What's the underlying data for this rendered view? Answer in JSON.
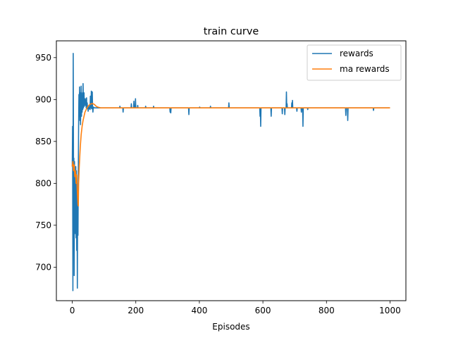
{
  "chart_data": {
    "type": "line",
    "title": "train curve",
    "xlabel": "Episodes",
    "ylabel": "",
    "xlim": [
      -50,
      1050
    ],
    "ylim": [
      660,
      970
    ],
    "xticks": [
      0,
      200,
      400,
      600,
      800,
      1000
    ],
    "yticks": [
      700,
      750,
      800,
      850,
      900,
      950
    ],
    "grid": false,
    "legend_position": "upper right",
    "colors": {
      "rewards": "#1f77b4",
      "ma_rewards": "#ff7f0e"
    },
    "series": [
      {
        "name": "rewards",
        "key": "rewards",
        "color": "#1f77b4",
        "points": [
          [
            0,
            820
          ],
          [
            1,
            868
          ],
          [
            2,
            672
          ],
          [
            3,
            955
          ],
          [
            4,
            810
          ],
          [
            5,
            830
          ],
          [
            6,
            690
          ],
          [
            7,
            826
          ],
          [
            8,
            775
          ],
          [
            9,
            812
          ],
          [
            10,
            740
          ],
          [
            11,
            820
          ],
          [
            12,
            735
          ],
          [
            13,
            815
          ],
          [
            14,
            720
          ],
          [
            15,
            800
          ],
          [
            16,
            675
          ],
          [
            17,
            790
          ],
          [
            18,
            738
          ],
          [
            19,
            810
          ],
          [
            20,
            870
          ],
          [
            21,
            906
          ],
          [
            22,
            880
          ],
          [
            23,
            915
          ],
          [
            24,
            875
          ],
          [
            25,
            908
          ],
          [
            26,
            870
          ],
          [
            27,
            895
          ],
          [
            28,
            916
          ],
          [
            29,
            880
          ],
          [
            30,
            905
          ],
          [
            31,
            885
          ],
          [
            32,
            908
          ],
          [
            33,
            888
          ],
          [
            34,
            919
          ],
          [
            35,
            890
          ],
          [
            36,
            898
          ],
          [
            37,
            908
          ],
          [
            38,
            892
          ],
          [
            39,
            900
          ],
          [
            40,
            895
          ],
          [
            41,
            901
          ],
          [
            42,
            893
          ],
          [
            43,
            898
          ],
          [
            44,
            890
          ],
          [
            45,
            902
          ],
          [
            46,
            889
          ],
          [
            47,
            896
          ],
          [
            48,
            890
          ],
          [
            49,
            892
          ],
          [
            50,
            886
          ],
          [
            51,
            890
          ],
          [
            52,
            891
          ],
          [
            53,
            889
          ],
          [
            54,
            890
          ],
          [
            55,
            893
          ],
          [
            56,
            888
          ],
          [
            57,
            904
          ],
          [
            58,
            890
          ],
          [
            59,
            891
          ],
          [
            60,
            910
          ],
          [
            61,
            889
          ],
          [
            62,
            890
          ],
          [
            63,
            909
          ],
          [
            64,
            890
          ],
          [
            65,
            885
          ],
          [
            66,
            890
          ],
          [
            67,
            891
          ],
          [
            68,
            890
          ],
          [
            69,
            890
          ],
          [
            70,
            890
          ],
          [
            100,
            890
          ],
          [
            149,
            890
          ],
          [
            150,
            892
          ],
          [
            151,
            890
          ],
          [
            159,
            890
          ],
          [
            160,
            885
          ],
          [
            161,
            890
          ],
          [
            185,
            890
          ],
          [
            186,
            895
          ],
          [
            187,
            890
          ],
          [
            193,
            890
          ],
          [
            194,
            898
          ],
          [
            195,
            890
          ],
          [
            198,
            890
          ],
          [
            199,
            901
          ],
          [
            200,
            890
          ],
          [
            205,
            890
          ],
          [
            206,
            893
          ],
          [
            207,
            890
          ],
          [
            230,
            890
          ],
          [
            231,
            892
          ],
          [
            232,
            890
          ],
          [
            255,
            890
          ],
          [
            256,
            892
          ],
          [
            257,
            890
          ],
          [
            307,
            890
          ],
          [
            308,
            885
          ],
          [
            309,
            890
          ],
          [
            310,
            884
          ],
          [
            311,
            890
          ],
          [
            366,
            890
          ],
          [
            367,
            882
          ],
          [
            368,
            890
          ],
          [
            400,
            890
          ],
          [
            401,
            891
          ],
          [
            402,
            890
          ],
          [
            434,
            890
          ],
          [
            435,
            892
          ],
          [
            436,
            890
          ],
          [
            492,
            890
          ],
          [
            493,
            896
          ],
          [
            494,
            890
          ],
          [
            590,
            890
          ],
          [
            591,
            880
          ],
          [
            592,
            890
          ],
          [
            593,
            868
          ],
          [
            594,
            890
          ],
          [
            625,
            890
          ],
          [
            626,
            880
          ],
          [
            627,
            890
          ],
          [
            660,
            890
          ],
          [
            661,
            883
          ],
          [
            662,
            890
          ],
          [
            668,
            890
          ],
          [
            669,
            882
          ],
          [
            670,
            890
          ],
          [
            673,
            890
          ],
          [
            674,
            909
          ],
          [
            675,
            890
          ],
          [
            676,
            895
          ],
          [
            677,
            890
          ],
          [
            690,
            890
          ],
          [
            691,
            896
          ],
          [
            692,
            890
          ],
          [
            693,
            899
          ],
          [
            694,
            890
          ],
          [
            706,
            890
          ],
          [
            707,
            886
          ],
          [
            708,
            890
          ],
          [
            720,
            890
          ],
          [
            721,
            885
          ],
          [
            722,
            890
          ],
          [
            725,
            890
          ],
          [
            726,
            868
          ],
          [
            727,
            890
          ],
          [
            740,
            890
          ],
          [
            741,
            888
          ],
          [
            742,
            890
          ],
          [
            860,
            890
          ],
          [
            861,
            881
          ],
          [
            862,
            890
          ],
          [
            866,
            890
          ],
          [
            867,
            875
          ],
          [
            868,
            890
          ],
          [
            947,
            890
          ],
          [
            948,
            887
          ],
          [
            949,
            890
          ],
          [
            1000,
            890
          ]
        ]
      },
      {
        "name": "ma rewards",
        "key": "ma_rewards",
        "color": "#ff7f0e",
        "points": [
          [
            0,
            820
          ],
          [
            2,
            826
          ],
          [
            4,
            815
          ],
          [
            6,
            822
          ],
          [
            8,
            808
          ],
          [
            10,
            815
          ],
          [
            12,
            800
          ],
          [
            14,
            810
          ],
          [
            16,
            790
          ],
          [
            18,
            775
          ],
          [
            19,
            773
          ],
          [
            20,
            800
          ],
          [
            22,
            820
          ],
          [
            25,
            842
          ],
          [
            28,
            858
          ],
          [
            31,
            868
          ],
          [
            34,
            875
          ],
          [
            37,
            880
          ],
          [
            40,
            885
          ],
          [
            45,
            889
          ],
          [
            50,
            892
          ],
          [
            55,
            894
          ],
          [
            60,
            895
          ],
          [
            65,
            895
          ],
          [
            70,
            894
          ],
          [
            75,
            892
          ],
          [
            80,
            891
          ],
          [
            90,
            890
          ],
          [
            100,
            890
          ],
          [
            200,
            890
          ],
          [
            400,
            890
          ],
          [
            600,
            890
          ],
          [
            800,
            890
          ],
          [
            1000,
            890
          ]
        ]
      }
    ]
  }
}
